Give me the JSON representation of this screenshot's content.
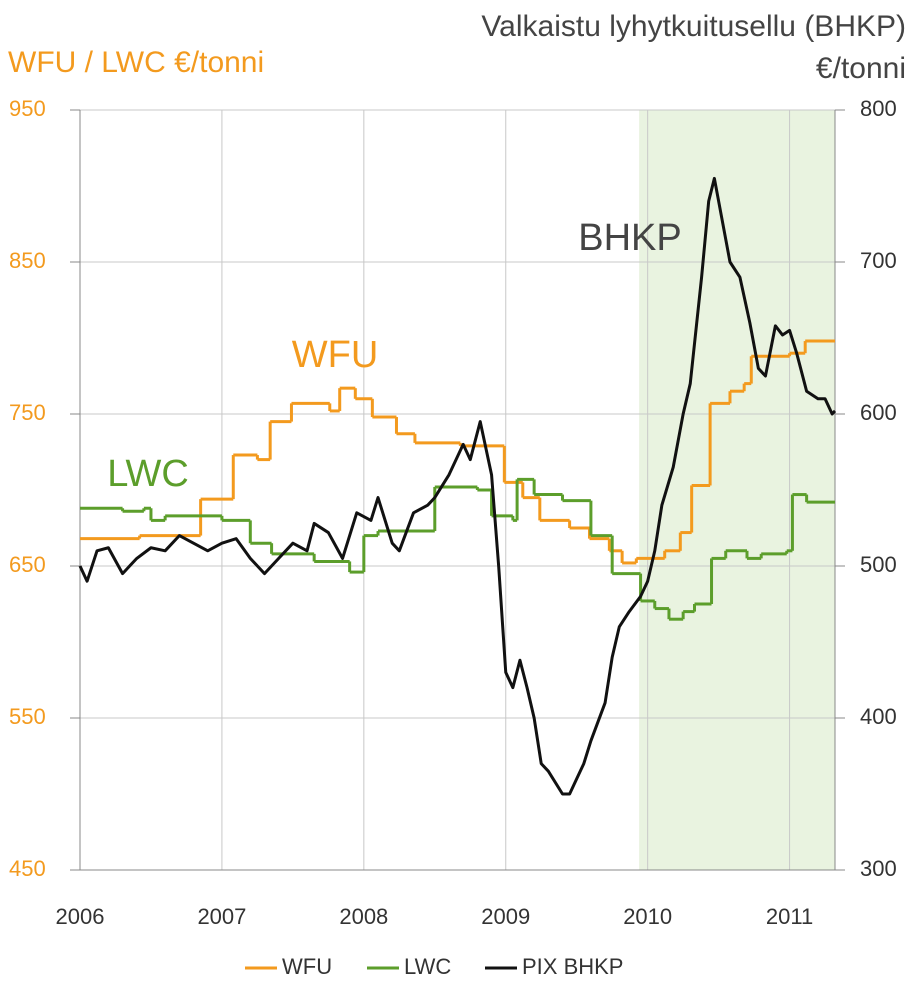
{
  "chart_data": {
    "type": "line",
    "ylabel": "WFU / LWC  €/tonni",
    "y2label": [
      "Valkaistu lyhytkuitusellu (BHKP)",
      "€/tonni"
    ],
    "xlim": [
      2006,
      2011.32
    ],
    "xticks": [
      2006,
      2007,
      2008,
      2009,
      2010,
      2011
    ],
    "ylim": [
      450,
      950
    ],
    "yticks": [
      450,
      550,
      650,
      750,
      850,
      950
    ],
    "y2lim": [
      300,
      800
    ],
    "y2ticks": [
      300,
      400,
      500,
      600,
      700,
      800
    ],
    "grid": true,
    "legend": "bottom",
    "highlight_x": [
      2009.94,
      2011.32
    ],
    "highlight_color": "#e9f3e0",
    "annotations": [
      "WFU",
      "LWC",
      "BHKP"
    ],
    "series": [
      {
        "name": "WFU",
        "color": "#f39a1e",
        "step": true,
        "x": [
          2006,
          2006.42,
          2006.85,
          2007.08,
          2007.25,
          2007.34,
          2007.49,
          2007.76,
          2007.83,
          2007.94,
          2008.06,
          2008.23,
          2008.36,
          2008.68,
          2008.99,
          2009.12,
          2009.24,
          2009.45,
          2009.59,
          2009.73,
          2009.82,
          2009.92,
          2010.12,
          2010.23,
          2010.31,
          2010.44,
          2010.58,
          2010.68,
          2010.73,
          2011.0,
          2011.11,
          2011.32
        ],
        "values": [
          668,
          670,
          694,
          723,
          720,
          745,
          757,
          752,
          767,
          760,
          748,
          737,
          731,
          729,
          705,
          695,
          680,
          675,
          668,
          660,
          652,
          655,
          660,
          672,
          703,
          757,
          765,
          770,
          788,
          790,
          798,
          798
        ]
      },
      {
        "name": "LWC",
        "color": "#5c9e2b",
        "step": true,
        "x": [
          2006,
          2006.3,
          2006.45,
          2006.5,
          2006.6,
          2007.0,
          2007.2,
          2007.35,
          2007.65,
          2007.9,
          2008.0,
          2008.1,
          2008.5,
          2008.8,
          2008.9,
          2009.05,
          2009.08,
          2009.2,
          2009.4,
          2009.6,
          2009.75,
          2009.95,
          2010.05,
          2010.15,
          2010.25,
          2010.33,
          2010.45,
          2010.55,
          2010.7,
          2010.8,
          2010.98,
          2011.02,
          2011.12,
          2011.32
        ],
        "values": [
          688,
          686,
          688,
          680,
          683,
          680,
          665,
          658,
          653,
          646,
          670,
          673,
          702,
          700,
          683,
          680,
          707,
          697,
          693,
          670,
          645,
          627,
          622,
          615,
          620,
          625,
          655,
          660,
          655,
          658,
          660,
          697,
          692,
          692
        ]
      },
      {
        "name": "PIX BHKP",
        "color": "#111111",
        "axis": "y2",
        "x": [
          2006.0,
          2006.05,
          2006.12,
          2006.2,
          2006.3,
          2006.4,
          2006.5,
          2006.6,
          2006.7,
          2006.8,
          2006.9,
          2007.0,
          2007.1,
          2007.2,
          2007.3,
          2007.4,
          2007.5,
          2007.6,
          2007.65,
          2007.75,
          2007.85,
          2007.95,
          2008.05,
          2008.1,
          2008.2,
          2008.25,
          2008.35,
          2008.45,
          2008.5,
          2008.6,
          2008.7,
          2008.75,
          2008.82,
          2008.9,
          2008.95,
          2009.0,
          2009.05,
          2009.1,
          2009.15,
          2009.2,
          2009.25,
          2009.3,
          2009.4,
          2009.45,
          2009.5,
          2009.55,
          2009.6,
          2009.7,
          2009.75,
          2009.8,
          2009.87,
          2009.95,
          2010.0,
          2010.05,
          2010.1,
          2010.18,
          2010.25,
          2010.3,
          2010.38,
          2010.43,
          2010.47,
          2010.52,
          2010.58,
          2010.65,
          2010.72,
          2010.78,
          2010.83,
          2010.9,
          2010.95,
          2011.0,
          2011.05,
          2011.12,
          2011.2,
          2011.25,
          2011.3,
          2011.32
        ],
        "values": [
          500,
          490,
          510,
          512,
          495,
          505,
          512,
          510,
          520,
          515,
          510,
          515,
          518,
          505,
          495,
          505,
          515,
          510,
          528,
          522,
          505,
          535,
          530,
          545,
          515,
          510,
          535,
          540,
          545,
          560,
          580,
          570,
          595,
          560,
          500,
          430,
          420,
          438,
          420,
          400,
          370,
          365,
          350,
          350,
          360,
          370,
          385,
          410,
          440,
          460,
          470,
          480,
          490,
          510,
          540,
          565,
          600,
          620,
          690,
          740,
          755,
          730,
          700,
          690,
          660,
          630,
          625,
          658,
          652,
          655,
          640,
          615,
          610,
          610,
          600,
          602
        ]
      }
    ]
  }
}
